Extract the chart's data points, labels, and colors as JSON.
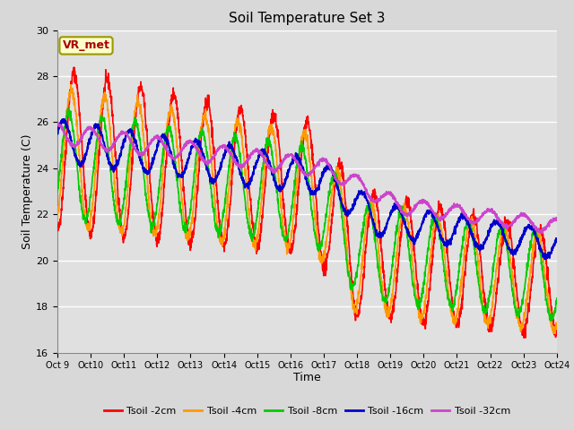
{
  "title": "Soil Temperature Set 3",
  "xlabel": "Time",
  "ylabel": "Soil Temperature (C)",
  "ylim": [
    16,
    30
  ],
  "xlim": [
    0,
    360
  ],
  "fig_bg_color": "#d8d8d8",
  "plot_bg_color": "#e0e0e0",
  "grid_color": "#ffffff",
  "annotation_text": "VR_met",
  "annotation_bg": "#ffffcc",
  "annotation_border": "#999900",
  "series_colors": {
    "Tsoil -2cm": "#ff0000",
    "Tsoil -4cm": "#ff9900",
    "Tsoil -8cm": "#00cc00",
    "Tsoil -16cm": "#0000cc",
    "Tsoil -32cm": "#cc44cc"
  },
  "xtick_labels": [
    "Oct 9",
    "Oct 10",
    "Oct 11",
    "Oct 12",
    "Oct 13",
    "Oct 14",
    "Oct 15",
    "Oct 16",
    "Oct 17",
    "Oct 18",
    "Oct 19",
    "Oct 20",
    "Oct 21",
    "Oct 22",
    "Oct 23",
    "Oct 24"
  ],
  "xtick_positions": [
    0,
    24,
    48,
    72,
    96,
    120,
    144,
    168,
    192,
    216,
    240,
    264,
    288,
    312,
    336,
    360
  ],
  "ytick_positions": [
    16,
    18,
    20,
    22,
    24,
    26,
    28,
    30
  ]
}
